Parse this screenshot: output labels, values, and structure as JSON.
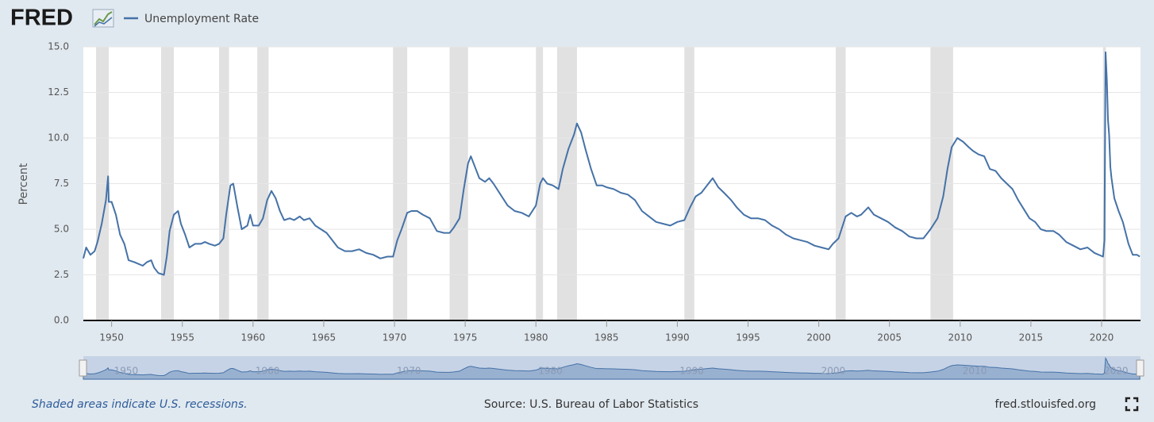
{
  "header": {
    "logo": "FRED"
  },
  "chart_data": {
    "type": "line",
    "y_label": "Percent",
    "x": [
      1948.0,
      1948.2,
      1948.5,
      1948.8,
      1949.0,
      1949.3,
      1949.6,
      1949.75,
      1949.8,
      1950.0,
      1950.3,
      1950.6,
      1950.9,
      1951.2,
      1951.6,
      1951.9,
      1952.2,
      1952.5,
      1952.8,
      1953.0,
      1953.3,
      1953.7,
      1953.9,
      1954.1,
      1954.4,
      1954.7,
      1954.9,
      1955.2,
      1955.5,
      1955.9,
      1956.3,
      1956.6,
      1956.9,
      1957.3,
      1957.6,
      1957.9,
      1958.1,
      1958.4,
      1958.6,
      1958.9,
      1959.2,
      1959.6,
      1959.8,
      1960.0,
      1960.4,
      1960.7,
      1961.0,
      1961.3,
      1961.6,
      1961.9,
      1962.2,
      1962.6,
      1962.9,
      1963.3,
      1963.6,
      1964.0,
      1964.4,
      1964.8,
      1965.2,
      1965.6,
      1966.0,
      1966.5,
      1967.0,
      1967.5,
      1968.0,
      1968.5,
      1969.0,
      1969.5,
      1969.9,
      1970.2,
      1970.5,
      1970.9,
      1971.2,
      1971.6,
      1972.0,
      1972.5,
      1973.0,
      1973.5,
      1973.9,
      1974.2,
      1974.6,
      1974.9,
      1975.2,
      1975.4,
      1975.7,
      1976.0,
      1976.4,
      1976.7,
      1977.0,
      1977.5,
      1978.0,
      1978.5,
      1979.0,
      1979.5,
      1980.0,
      1980.3,
      1980.5,
      1980.8,
      1981.2,
      1981.6,
      1981.9,
      1982.3,
      1982.7,
      1982.9,
      1983.2,
      1983.5,
      1983.9,
      1984.3,
      1984.7,
      1985.0,
      1985.5,
      1986.0,
      1986.5,
      1987.0,
      1987.5,
      1988.0,
      1988.5,
      1989.0,
      1989.5,
      1990.0,
      1990.5,
      1990.9,
      1991.3,
      1991.7,
      1992.1,
      1992.5,
      1992.9,
      1993.3,
      1993.8,
      1994.2,
      1994.7,
      1995.2,
      1995.7,
      1996.2,
      1996.7,
      1997.2,
      1997.7,
      1998.2,
      1998.7,
      1999.2,
      1999.7,
      2000.2,
      2000.7,
      2001.0,
      2001.4,
      2001.9,
      2002.3,
      2002.7,
      2003.0,
      2003.5,
      2003.9,
      2004.4,
      2004.9,
      2005.4,
      2005.9,
      2006.4,
      2006.9,
      2007.4,
      2007.9,
      2008.4,
      2008.8,
      2009.1,
      2009.4,
      2009.8,
      2010.2,
      2010.6,
      2010.9,
      2011.3,
      2011.7,
      2012.1,
      2012.5,
      2012.9,
      2013.3,
      2013.7,
      2014.1,
      2014.5,
      2014.9,
      2015.3,
      2015.7,
      2016.1,
      2016.6,
      2017.0,
      2017.5,
      2018.0,
      2018.5,
      2019.0,
      2019.5,
      2020.1,
      2020.2,
      2020.28,
      2020.37,
      2020.45,
      2020.53,
      2020.62,
      2020.7,
      2020.9,
      2021.2,
      2021.5,
      2021.9,
      2022.2,
      2022.5,
      2022.7
    ],
    "series": [
      {
        "name": "Unemployment Rate",
        "color": "#4572a7",
        "values": [
          3.4,
          4.0,
          3.6,
          3.8,
          4.3,
          5.3,
          6.6,
          7.9,
          6.5,
          6.5,
          5.8,
          4.7,
          4.2,
          3.3,
          3.2,
          3.1,
          3.0,
          3.2,
          3.3,
          2.9,
          2.6,
          2.5,
          3.5,
          4.9,
          5.8,
          6.0,
          5.3,
          4.7,
          4.0,
          4.2,
          4.2,
          4.3,
          4.2,
          4.1,
          4.2,
          4.5,
          5.8,
          7.4,
          7.5,
          6.2,
          5.0,
          5.2,
          5.8,
          5.2,
          5.2,
          5.6,
          6.6,
          7.1,
          6.7,
          6.0,
          5.5,
          5.6,
          5.5,
          5.7,
          5.5,
          5.6,
          5.2,
          5.0,
          4.8,
          4.4,
          4.0,
          3.8,
          3.8,
          3.9,
          3.7,
          3.6,
          3.4,
          3.5,
          3.5,
          4.4,
          5.0,
          5.9,
          6.0,
          6.0,
          5.8,
          5.6,
          4.9,
          4.8,
          4.8,
          5.1,
          5.6,
          7.2,
          8.6,
          9.0,
          8.4,
          7.8,
          7.6,
          7.8,
          7.5,
          6.9,
          6.3,
          6.0,
          5.9,
          5.7,
          6.3,
          7.5,
          7.8,
          7.5,
          7.4,
          7.2,
          8.3,
          9.4,
          10.2,
          10.8,
          10.3,
          9.4,
          8.3,
          7.4,
          7.4,
          7.3,
          7.2,
          7.0,
          6.9,
          6.6,
          6.0,
          5.7,
          5.4,
          5.3,
          5.2,
          5.4,
          5.5,
          6.2,
          6.8,
          7.0,
          7.4,
          7.8,
          7.3,
          7.0,
          6.6,
          6.2,
          5.8,
          5.6,
          5.6,
          5.5,
          5.2,
          5.0,
          4.7,
          4.5,
          4.4,
          4.3,
          4.1,
          4.0,
          3.9,
          4.2,
          4.5,
          5.7,
          5.9,
          5.7,
          5.8,
          6.2,
          5.8,
          5.6,
          5.4,
          5.1,
          4.9,
          4.6,
          4.5,
          4.5,
          5.0,
          5.6,
          6.8,
          8.3,
          9.5,
          10.0,
          9.8,
          9.5,
          9.3,
          9.1,
          9.0,
          8.3,
          8.2,
          7.8,
          7.5,
          7.2,
          6.6,
          6.1,
          5.6,
          5.4,
          5.0,
          4.9,
          4.9,
          4.7,
          4.3,
          4.1,
          3.9,
          4.0,
          3.7,
          3.5,
          4.4,
          14.7,
          13.2,
          11.0,
          10.2,
          8.4,
          7.8,
          6.7,
          6.0,
          5.4,
          4.2,
          3.6,
          3.6,
          3.5
        ]
      }
    ],
    "recessions": [
      [
        1948.9,
        1949.8
      ],
      [
        1953.5,
        1954.4
      ],
      [
        1957.6,
        1958.3
      ],
      [
        1960.3,
        1961.1
      ],
      [
        1969.9,
        1970.9
      ],
      [
        1973.9,
        1975.2
      ],
      [
        1980.0,
        1980.5
      ],
      [
        1981.5,
        1982.9
      ],
      [
        1990.5,
        1991.2
      ],
      [
        2001.2,
        2001.9
      ],
      [
        2007.9,
        2009.5
      ],
      [
        2020.1,
        2020.3
      ]
    ],
    "recession_color": "#e1e1e1",
    "xlim": [
      1948.0,
      2022.75
    ],
    "xticks": [
      1950,
      1955,
      1960,
      1965,
      1970,
      1975,
      1980,
      1985,
      1990,
      1995,
      2000,
      2005,
      2010,
      2015,
      2020
    ],
    "ylim": [
      0,
      15
    ],
    "yticks": [
      {
        "value": 0,
        "label": "0.0"
      },
      2.5,
      {
        "value": 5,
        "label": "5.0"
      },
      7.5,
      {
        "value": 10,
        "label": "10.0"
      },
      12.5,
      {
        "value": 15,
        "label": "15.0"
      }
    ],
    "grid": true
  },
  "footer": {
    "note": "Shaded areas indicate U.S. recessions.",
    "source": "Source: U.S. Bureau of Labor Statistics",
    "site": "fred.stlouisfed.org"
  }
}
